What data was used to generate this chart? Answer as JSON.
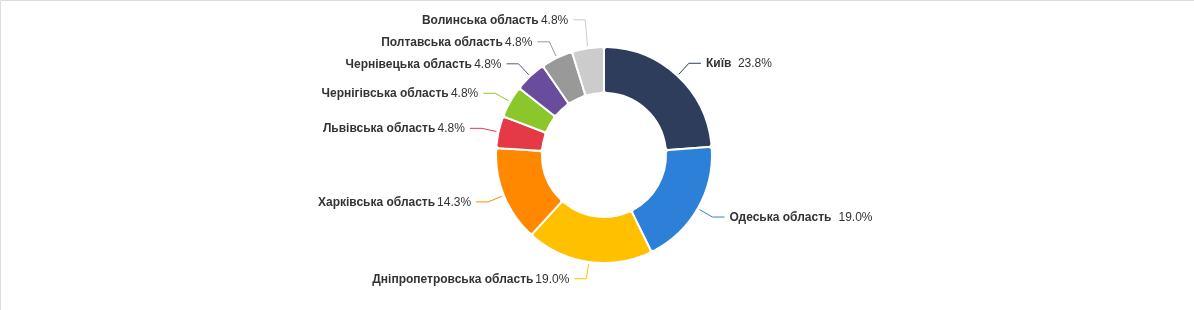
{
  "chart_data": {
    "type": "donut",
    "categories": [
      "Київ",
      "Одеська область",
      "Дніпропетровська область",
      "Харківська область",
      "Львівська область",
      "Чернігівська область",
      "Чернівецька область",
      "Полтавська область",
      "Волинська область"
    ],
    "values": [
      23.8,
      19.0,
      19.0,
      14.3,
      4.8,
      4.8,
      4.8,
      4.8,
      4.8
    ],
    "value_labels": [
      "23.8%",
      "19.0%",
      "19.0%",
      "14.3%",
      "4.8%",
      "4.8%",
      "4.8%",
      "4.8%",
      "4.8%"
    ],
    "colors": [
      "#2e3d5c",
      "#2d80d8",
      "#ffc000",
      "#ff8800",
      "#e63946",
      "#8bc72b",
      "#6a4c9c",
      "#999999",
      "#cccccc"
    ]
  }
}
